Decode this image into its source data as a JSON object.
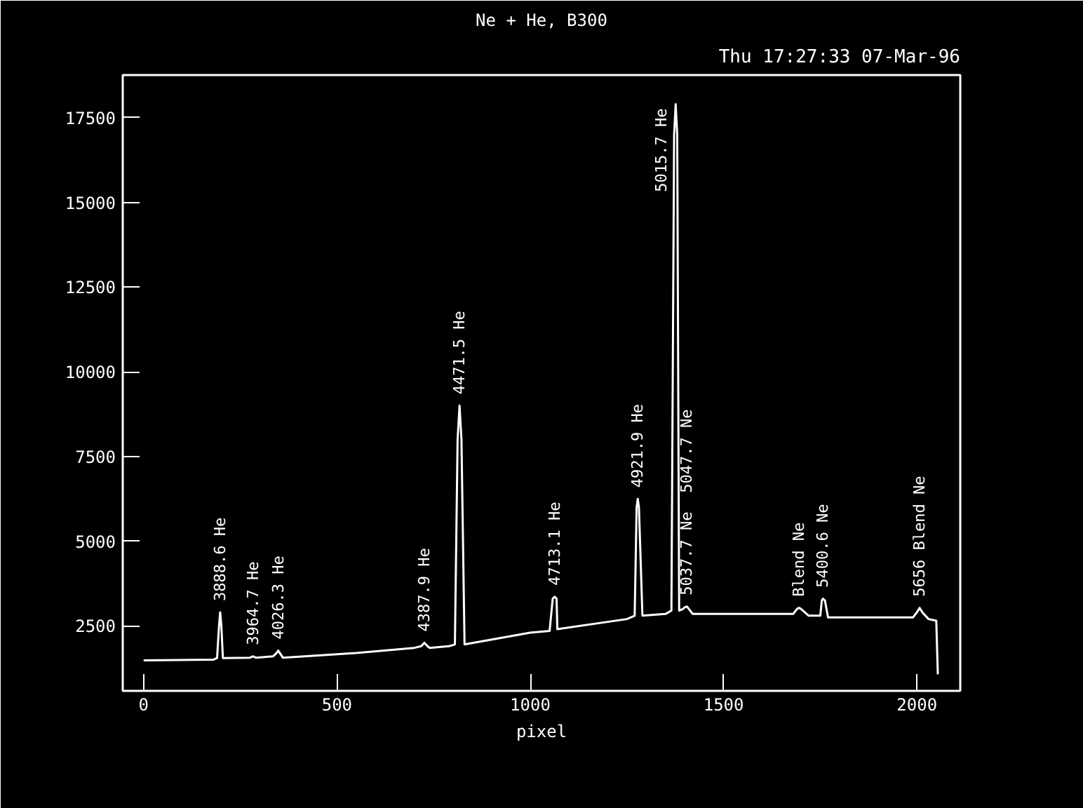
{
  "chart_data": {
    "type": "line",
    "subtitle": "Ne + He, B300",
    "xlabel": "pixel",
    "color": "#ffffff",
    "x": [
      0,
      180,
      190,
      195,
      198,
      201,
      205,
      275,
      283,
      290,
      335,
      344,
      348,
      352,
      360,
      550,
      700,
      718,
      726,
      734,
      740,
      790,
      805,
      812,
      817,
      822,
      830,
      1000,
      1050,
      1058,
      1063,
      1068,
      1070,
      1250,
      1270,
      1275,
      1278,
      1281,
      1290,
      1350,
      1365,
      1372,
      1376,
      1380,
      1385,
      1395,
      1400,
      1405,
      1410,
      1420,
      1680,
      1690,
      1695,
      1700,
      1720,
      1750,
      1754,
      1757,
      1762,
      1770,
      1990,
      2000,
      2007,
      2014,
      2030,
      2050,
      2054
    ],
    "values": [
      1480,
      1500,
      1550,
      2500,
      2900,
      2500,
      1550,
      1560,
      1600,
      1560,
      1600,
      1700,
      1770,
      1700,
      1560,
      1700,
      1850,
      1900,
      2000,
      1900,
      1850,
      1900,
      1950,
      8000,
      9000,
      8000,
      1950,
      2300,
      2350,
      3300,
      3360,
      3300,
      2400,
      2700,
      2800,
      6000,
      6250,
      6000,
      2800,
      2850,
      2950,
      17000,
      17900,
      17000,
      2950,
      3000,
      3050,
      3070,
      3000,
      2850,
      2850,
      3000,
      3030,
      3000,
      2800,
      2800,
      3250,
      3300,
      3250,
      2750,
      2750,
      2900,
      3030,
      2900,
      2700,
      2650,
      1070
    ],
    "xlim": [
      -54,
      2112
    ],
    "ylim": [
      580,
      18760
    ],
    "xticks": [
      0,
      500,
      1000,
      1500,
      2000
    ],
    "yticks": [
      2500,
      5000,
      7500,
      10000,
      12500,
      15000,
      17500
    ],
    "grid": false,
    "annotations": [
      "Thu 17:27:33 07-Mar-96",
      {
        "text": "3888.6 He",
        "x": 198,
        "y": 2900
      },
      {
        "text": "3964.7 He",
        "x": 283,
        "y": 1600
      },
      {
        "text": "4026.3 He",
        "x": 348,
        "y": 1770
      },
      {
        "text": "4387.9 He",
        "x": 726,
        "y": 2000
      },
      {
        "text": "4471.5 He",
        "x": 817,
        "y": 9000
      },
      {
        "text": "4713.1 He",
        "x": 1063,
        "y": 3360
      },
      {
        "text": "4921.9 He",
        "x": 1278,
        "y": 6250
      },
      {
        "text": "5015.7 He",
        "x": 1376,
        "y": 17900
      },
      {
        "text": "5037.7 Ne",
        "x": 1405,
        "y": 3070
      },
      "5047.7 Ne",
      {
        "text": "Blend Ne",
        "x": 1695,
        "y": 3030
      },
      {
        "text": "5400.6 Ne",
        "x": 1757,
        "y": 3300
      },
      {
        "text": "5656 Blend Ne",
        "x": 2007,
        "y": 3030
      }
    ]
  }
}
